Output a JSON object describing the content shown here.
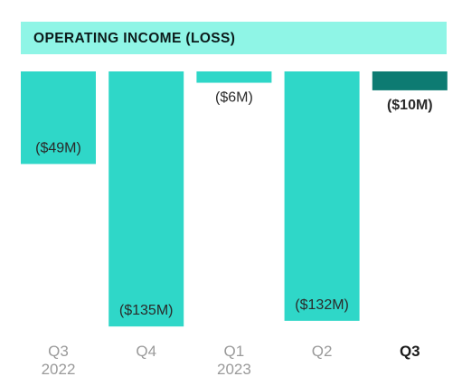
{
  "chart_data": {
    "type": "bar",
    "title": "OPERATING INCOME (LOSS)",
    "categories": [
      {
        "quarter": "Q3",
        "year": "2022"
      },
      {
        "quarter": "Q4",
        "year": ""
      },
      {
        "quarter": "Q1",
        "year": "2023"
      },
      {
        "quarter": "Q2",
        "year": ""
      },
      {
        "quarter": "Q3",
        "year": ""
      }
    ],
    "values": [
      -49,
      -135,
      -6,
      -132,
      -10
    ],
    "unit": "$M",
    "data_labels": [
      "($49M)",
      "($135M)",
      "($6M)",
      "($132M)",
      "($10M)"
    ],
    "highlighted_index": 4,
    "colors": {
      "bar": "#2fd7c8",
      "bar_highlight": "#0d7b72",
      "title_band": "#8ff5e6",
      "label": "#2a2a2a",
      "category": "#9a9a9a",
      "category_highlight": "#1a1a1a"
    }
  }
}
